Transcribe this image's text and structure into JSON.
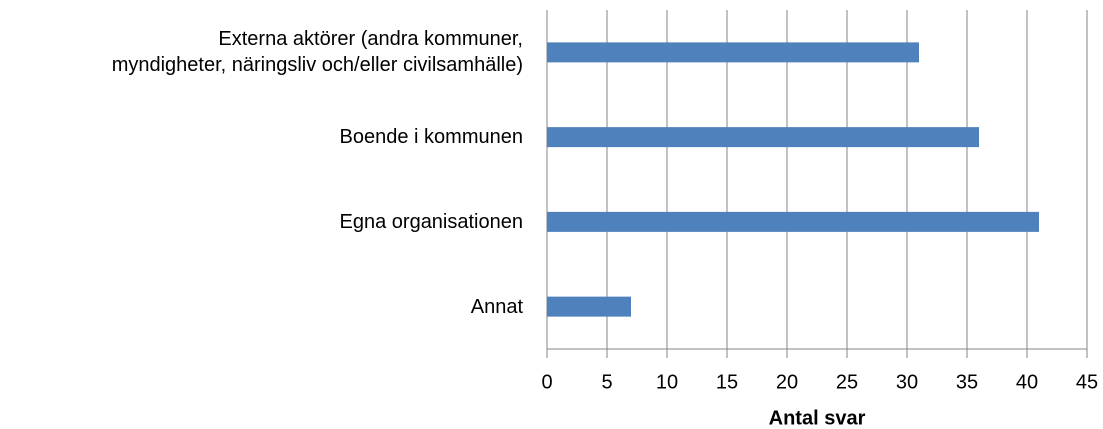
{
  "chart_data": {
    "type": "bar",
    "orientation": "horizontal",
    "categories": [
      "Externa aktörer (andra kommuner,\nmyndigheter, näringsliv och/eller civilsamhälle)",
      "Boende i kommunen",
      "Egna organisationen",
      "Annat"
    ],
    "values": [
      31,
      36,
      41,
      7
    ],
    "color": "#4f81bd",
    "xlim": [
      0,
      45
    ],
    "xticks": [
      0,
      5,
      10,
      15,
      20,
      25,
      30,
      35,
      40,
      45
    ],
    "xlabel": "Antal svar",
    "grid": true
  }
}
